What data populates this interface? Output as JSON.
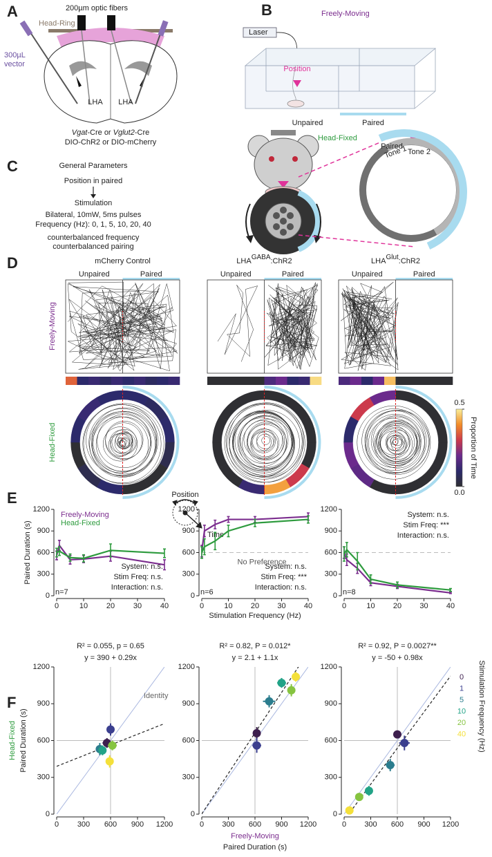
{
  "panel_a": {
    "label": "A",
    "fibers": "200µm optic fibers",
    "head_ring": "Head-Ring",
    "vector": [
      "300µL",
      "vector"
    ],
    "regions": [
      "LHA",
      "LHA"
    ],
    "genotype": [
      "Vgat",
      "-Cre or ",
      "Vglut2",
      "-Cre"
    ],
    "construct": "DIO-ChR2 or DIO-mCherry"
  },
  "panel_b": {
    "label": "B",
    "freely_moving": "Freely-Moving",
    "laser": "Laser",
    "position": "Position",
    "unpaired": "Unpaired",
    "paired": "Paired",
    "head_fixed": "Head-Fixed",
    "ring_paired": "Paired",
    "tones": [
      "Tone 1",
      "Tone 2"
    ]
  },
  "panel_c": {
    "label": "C",
    "title": "General Parameters",
    "steps": [
      "Position in paired",
      "Stimulation"
    ],
    "details": [
      "Bilateral, 10mW, 5ms pulses",
      "Frequency (Hz): 0, 1, 5, 10, 20, 40"
    ],
    "notes": [
      "counterbalanced frequency",
      "counterbalanced pairing"
    ]
  },
  "panel_d": {
    "label": "D",
    "rows": [
      "Freely-Moving",
      "Head-Fixed"
    ],
    "columns": [
      {
        "title": [
          "mCherry Control"
        ],
        "unpaired": "Unpaired",
        "paired": "Paired",
        "strip": [
          0.35,
          0.1,
          0.12,
          0.08,
          0.12,
          0.1,
          0.12,
          0.08,
          0.1,
          0.12
        ],
        "ring": [
          0.1,
          0.08,
          0.1,
          0.05,
          0,
          0,
          0.1,
          0.05,
          0,
          0.1,
          0.12,
          0.1
        ]
      },
      {
        "title": [
          "LHA",
          "GABA",
          ":ChR2"
        ],
        "unpaired": "Unpaired",
        "paired": "Paired",
        "strip": [
          0,
          0,
          0,
          0,
          0,
          0.15,
          0.2,
          0.1,
          0.12,
          0.48
        ],
        "ring": [
          0,
          0,
          0,
          0,
          0.3,
          0.42,
          0.12,
          0,
          0,
          0,
          0,
          0
        ]
      },
      {
        "title": [
          "LHA",
          "Glut",
          ":ChR2"
        ],
        "unpaired": "Unpaired",
        "paired": "Paired",
        "strip": [
          0.15,
          0.2,
          0.1,
          0.2,
          0.45,
          0,
          0,
          0,
          0,
          0
        ],
        "ring": [
          0,
          0,
          0,
          0,
          0,
          0,
          0,
          0.18,
          0.2,
          0.1,
          0.3,
          0.2
        ]
      }
    ],
    "colorbar": {
      "label": "Proportion of Time",
      "lim": [
        0,
        0.5
      ],
      "ticks": [
        {
          "value": 0,
          "label": "0.0"
        },
        0.5
      ],
      "colormap": [
        "#2f2f33",
        "#2c2a6b",
        "#6b2a8c",
        "#cc3a4c",
        "#f28c28",
        "#f9ef9a"
      ]
    },
    "legend": [
      "Position",
      "Time"
    ]
  },
  "panel_e": {
    "label": "E"
  },
  "panel_f": {
    "label": "F"
  },
  "chart_data": [
    {
      "type": "line",
      "x": [
        0,
        1,
        5,
        10,
        20,
        40
      ],
      "xlim": [
        0,
        40
      ],
      "xticks": [
        0,
        10,
        20,
        30,
        40
      ],
      "ylim": [
        0,
        1200
      ],
      "yticks": [
        0,
        300,
        600,
        900,
        1200
      ],
      "ylabel": "Paired Duration (s)",
      "legend": "upper left",
      "series": [
        {
          "name": "Freely-Moving",
          "color": "#7b2d8e",
          "values": [
            560,
            700,
            500,
            510,
            550,
            430
          ],
          "errors": [
            60,
            70,
            60,
            50,
            70,
            70
          ]
        },
        {
          "name": "Head-Fixed",
          "color": "#2e9b3e",
          "values": [
            600,
            620,
            530,
            520,
            630,
            590
          ],
          "errors": [
            60,
            60,
            50,
            50,
            90,
            60
          ]
        }
      ],
      "stats": [
        "System: n.s.",
        "Stim Freq: n.s.",
        "Interaction: n.s."
      ],
      "stats_corner": "lower right",
      "n": "n=7"
    },
    {
      "type": "line",
      "x": [
        0,
        1,
        5,
        10,
        20,
        40
      ],
      "xlim": [
        0,
        40
      ],
      "xticks": [
        0,
        10,
        20,
        30,
        40
      ],
      "ylim": [
        0,
        1200
      ],
      "yticks": [
        0,
        300,
        600,
        900,
        1200
      ],
      "xlabel": "Stimulation Frequency (Hz)",
      "series": [
        {
          "color": "#7b2d8e",
          "values": [
            620,
            900,
            990,
            1060,
            1060,
            1100
          ],
          "errors": [
            80,
            80,
            60,
            40,
            40,
            50
          ]
        },
        {
          "color": "#2e9b3e",
          "values": [
            600,
            680,
            760,
            900,
            1010,
            1060
          ],
          "errors": [
            80,
            110,
            120,
            80,
            50,
            50
          ]
        }
      ],
      "reference_line": 600,
      "reference_label": "No Preference",
      "stats": [
        "System: n.s.",
        "Stim Freq: ***",
        "Interaction: n.s."
      ],
      "stats_corner": "lower right",
      "n": "n=6"
    },
    {
      "type": "line",
      "x": [
        0,
        1,
        5,
        10,
        20,
        40
      ],
      "xlim": [
        0,
        40
      ],
      "xticks": [
        0,
        10,
        20,
        30,
        40
      ],
      "ylim": [
        0,
        1200
      ],
      "yticks": [
        0,
        300,
        600,
        900,
        1200
      ],
      "series": [
        {
          "color": "#7b2d8e",
          "values": [
            600,
            500,
            380,
            180,
            130,
            40
          ],
          "errors": [
            80,
            80,
            70,
            40,
            30,
            10
          ]
        },
        {
          "color": "#2e9b3e",
          "values": [
            580,
            640,
            480,
            230,
            150,
            80
          ],
          "errors": [
            100,
            100,
            120,
            60,
            40,
            20
          ]
        }
      ],
      "reference_line": 600,
      "stats": [
        "System: n.s.",
        "Stim Freq: ***",
        "Interaction: n.s."
      ],
      "stats_corner": "upper right",
      "n": "n=8"
    },
    {
      "type": "scatter",
      "title": "R² = 0.055, p = 0.65",
      "subtitle": "y = 390 + 0.29x",
      "fit": {
        "intercept": 390,
        "slope": 0.29
      },
      "x": [
        560,
        600,
        480,
        510,
        620,
        590
      ],
      "values": [
        580,
        690,
        530,
        520,
        560,
        430
      ],
      "x_errors": [
        50,
        40,
        40,
        40,
        50,
        40
      ],
      "errors": [
        40,
        50,
        50,
        40,
        40,
        50
      ],
      "colors": [
        "#3d1f4e",
        "#3b3f8f",
        "#2b7d8e",
        "#22a387",
        "#86c440",
        "#f4e03a"
      ],
      "xlim": [
        0,
        1200
      ],
      "xticks": [
        0,
        300,
        600,
        900,
        1200
      ],
      "ylim": [
        0,
        1200
      ],
      "yticks": [
        0,
        300,
        600,
        900,
        1200
      ],
      "ylabel": [
        "Head-Fixed",
        "Paired Duration (s)"
      ],
      "ylabel_colors": [
        "#2e9b3e",
        "#222222"
      ],
      "identity_line": true,
      "identity_label": "Identity",
      "reference_line": 600
    },
    {
      "type": "scatter",
      "title": "R² = 0.82, P = 0.012*",
      "subtitle": "y = 2.1 + 1.1x",
      "fit": {
        "intercept": 2.1,
        "slope": 1.1
      },
      "x": [
        620,
        620,
        760,
        900,
        1010,
        1060
      ],
      "values": [
        660,
        560,
        920,
        1070,
        1010,
        1120
      ],
      "x_errors": [
        40,
        50,
        70,
        50,
        40,
        40
      ],
      "errors": [
        50,
        60,
        50,
        40,
        50,
        40
      ],
      "colors": [
        "#3d1f4e",
        "#3b3f8f",
        "#2b7d8e",
        "#22a387",
        "#86c440",
        "#f4e03a"
      ],
      "xlim": [
        0,
        1200
      ],
      "xticks": [
        0,
        300,
        600,
        900,
        1200
      ],
      "ylim": [
        0,
        1200
      ],
      "yticks": [
        0,
        300,
        600,
        900,
        1200
      ],
      "xlabel": [
        "Freely-Moving",
        "Paired Duration (s)"
      ],
      "xlabel_colors": [
        "#7b2d8e",
        "#222222"
      ],
      "identity_line": true,
      "reference_line": 600
    },
    {
      "type": "scatter",
      "title": "R² = 0.92, P = 0.0027**",
      "subtitle": "y = -50 + 0.98x",
      "fit": {
        "intercept": -50,
        "slope": 0.98
      },
      "x": [
        600,
        680,
        520,
        280,
        170,
        60
      ],
      "values": [
        650,
        580,
        400,
        190,
        140,
        30
      ],
      "x_errors": [
        30,
        60,
        50,
        40,
        30,
        20
      ],
      "errors": [
        30,
        60,
        50,
        40,
        30,
        20
      ],
      "colors": [
        "#3d1f4e",
        "#3b3f8f",
        "#2b7d8e",
        "#22a387",
        "#86c440",
        "#f4e03a"
      ],
      "xlim": [
        0,
        1200
      ],
      "xticks": [
        0,
        300,
        600,
        900,
        1200
      ],
      "ylim": [
        0,
        1200
      ],
      "yticks": [
        0,
        300,
        600,
        900,
        1200
      ],
      "identity_line": true,
      "reference_line": 600
    }
  ],
  "frequency_legend": {
    "title": "Stimulation Frequency (Hz)",
    "labels": [
      0,
      1,
      5,
      10,
      20,
      40
    ],
    "colors": [
      "#3d1f4e",
      "#3b3f8f",
      "#2b7d8e",
      "#22a387",
      "#86c440",
      "#f4e03a"
    ]
  }
}
